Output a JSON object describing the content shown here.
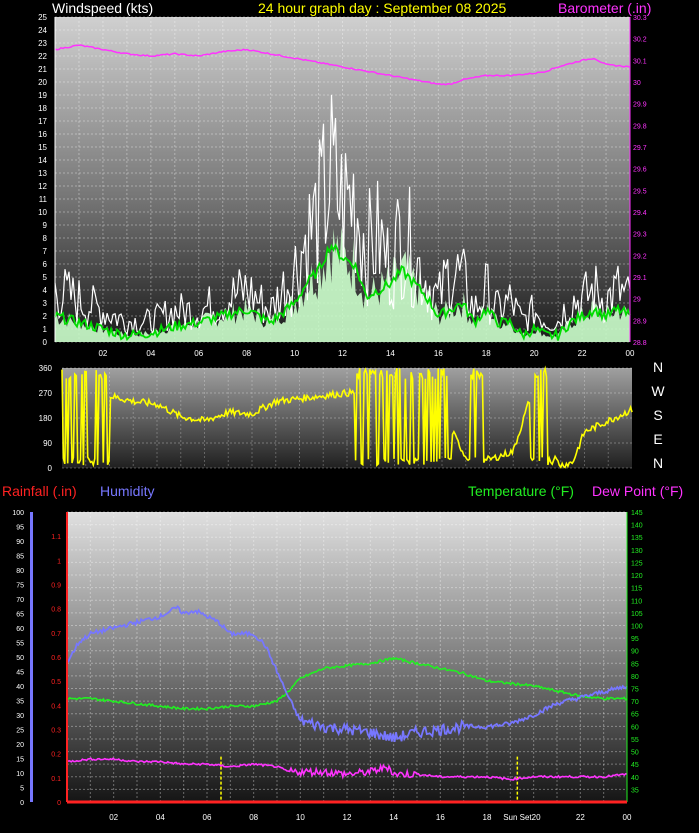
{
  "chart_data": [
    {
      "type": "line",
      "title": "24 hour graph day : September 08 2025",
      "ylabel_left": "Windspeed (kts)",
      "ylabel_right": "Barometer (.in)",
      "x_ticks": [
        "02",
        "04",
        "06",
        "08",
        "10",
        "12",
        "14",
        "16",
        "18",
        "20",
        "22",
        "00"
      ],
      "ylim_left": [
        0,
        25
      ],
      "ylim_right": [
        28.8,
        30.3
      ],
      "left_ticks": [
        "0",
        "1",
        "2",
        "3",
        "4",
        "5",
        "6",
        "7",
        "8",
        "9",
        "10",
        "11",
        "12",
        "13",
        "14",
        "15",
        "16",
        "17",
        "18",
        "19",
        "20",
        "21",
        "22",
        "23",
        "24",
        "25"
      ],
      "right_ticks": [
        "28.8",
        "28.9",
        "29",
        "29.1",
        "29.2",
        "29.3",
        "29.4",
        "29.5",
        "29.6",
        "29.7",
        "29.8",
        "29.9",
        "30",
        "30.1",
        "30.2",
        "30.3"
      ],
      "grid": true,
      "series": [
        {
          "key": "barometer",
          "color": "#ff33ff",
          "x": [
            0,
            1,
            2,
            3,
            4,
            5,
            6,
            7,
            8,
            9,
            10,
            11,
            12,
            13,
            14,
            15,
            16,
            16.5,
            17,
            18,
            19,
            20,
            20.5,
            21,
            22,
            22.5,
            23,
            24
          ],
          "values": [
            30.15,
            30.17,
            30.15,
            30.13,
            30.12,
            30.13,
            30.12,
            30.14,
            30.15,
            30.13,
            30.11,
            30.09,
            30.07,
            30.05,
            30.03,
            30.01,
            29.99,
            29.99,
            30.01,
            30.03,
            30.03,
            30.04,
            30.05,
            30.07,
            30.1,
            30.11,
            30.08,
            30.07
          ]
        },
        {
          "key": "gust",
          "color": "#ffffff",
          "x": [
            0,
            1,
            2,
            3,
            4,
            5,
            6,
            7,
            8,
            9,
            10,
            10.5,
            11,
            11.5,
            12,
            12.5,
            13,
            13.5,
            14,
            14.5,
            15,
            15.5,
            16,
            16.5,
            17,
            17.5,
            18,
            18.5,
            19,
            19.5,
            20,
            20.5,
            21,
            21.5,
            22,
            22.5,
            23,
            23.5,
            24
          ],
          "values": [
            5,
            4,
            3,
            2,
            2,
            3,
            3,
            4,
            5,
            3,
            7,
            10,
            12,
            16,
            13,
            14,
            9,
            10,
            7,
            11,
            8,
            6,
            4,
            7,
            6,
            3,
            5,
            3,
            4,
            2,
            3,
            2,
            2,
            4,
            4,
            5,
            4,
            5,
            4
          ]
        },
        {
          "key": "avg",
          "color": "#00dd00",
          "x": [
            0,
            1,
            2,
            3,
            4,
            5,
            6,
            7,
            8,
            9,
            10,
            10.5,
            11,
            11.5,
            12,
            12.5,
            13,
            13.5,
            14,
            14.5,
            15,
            15.5,
            16,
            16.5,
            17,
            17.5,
            18,
            18.5,
            19,
            19.5,
            20,
            20.5,
            21,
            21.5,
            22,
            22.5,
            23,
            23.5,
            24
          ],
          "values": [
            2,
            1.5,
            1,
            0.5,
            0.7,
            1.2,
            1.5,
            2,
            2.5,
            1.5,
            3,
            4.5,
            5.5,
            7.5,
            6.5,
            6,
            3.5,
            4,
            4.5,
            5.5,
            4.5,
            3.5,
            2,
            2.5,
            3,
            1.5,
            2.5,
            1.5,
            1.5,
            0.5,
            1,
            0.5,
            0.5,
            1.5,
            2,
            2.5,
            2,
            2.5,
            2
          ]
        }
      ]
    },
    {
      "type": "line",
      "ylabels_right": [
        "N",
        "W",
        "S",
        "E",
        "N"
      ],
      "ylim": [
        0,
        360
      ],
      "left_ticks": [
        "0",
        "90",
        "180",
        "270",
        "360"
      ],
      "series": [
        {
          "key": "direction",
          "color": "#ffff00",
          "x": [
            0,
            1,
            2,
            3,
            4,
            5,
            6,
            7,
            8,
            9,
            10,
            11,
            12,
            13,
            14,
            15,
            16,
            17,
            18,
            19,
            20,
            20.5,
            21,
            21.5,
            22,
            23,
            24
          ],
          "values": [
            280,
            290,
            260,
            240,
            230,
            185,
            170,
            200,
            195,
            240,
            250,
            260,
            270,
            270,
            290,
            240,
            200,
            40,
            30,
            60,
            330,
            60,
            10,
            20,
            130,
            170,
            210
          ]
        }
      ]
    },
    {
      "type": "line",
      "label_rain": "Rainfall (.in)",
      "label_humidity": "Humidity",
      "label_temp": "Temperature (°F)",
      "label_dew": "Dew Point (°F)",
      "sunset_label": "Sun Set",
      "x_ticks": [
        "02",
        "04",
        "06",
        "08",
        "10",
        "12",
        "14",
        "16",
        "18",
        "20",
        "22",
        "00"
      ],
      "ylim_humidity": [
        0,
        100
      ],
      "ylim_rain": [
        0,
        1.2
      ],
      "ylim_temp": [
        30,
        145
      ],
      "humidity_ticks": [
        "0",
        "5",
        "10",
        "15",
        "20",
        "25",
        "30",
        "35",
        "40",
        "45",
        "50",
        "55",
        "60",
        "65",
        "70",
        "75",
        "80",
        "85",
        "90",
        "95",
        "100"
      ],
      "rain_ticks": [
        "0",
        "0.1",
        "0.2",
        "0.3",
        "0.4",
        "0.5",
        "0.6",
        "0.7",
        "0.8",
        "0.9",
        "1",
        "1.1"
      ],
      "temp_ticks": [
        "35",
        "40",
        "45",
        "50",
        "55",
        "60",
        "65",
        "70",
        "75",
        "80",
        "85",
        "90",
        "95",
        "100",
        "105",
        "110",
        "115",
        "120",
        "125",
        "130",
        "135",
        "140",
        "145"
      ],
      "sunrise_x": 6.6,
      "sunset_x": 19.3,
      "series": [
        {
          "key": "humidity",
          "color": "#7777ff",
          "x": [
            0,
            0.5,
            1,
            2,
            3,
            4,
            4.7,
            5,
            5.5,
            6,
            6.5,
            7,
            8,
            8.5,
            9,
            9.5,
            10,
            11,
            12,
            13,
            14,
            15,
            16,
            17,
            18,
            19,
            20,
            21,
            22,
            23,
            24
          ],
          "values": [
            48,
            55,
            58,
            60,
            62,
            64,
            67,
            65,
            66,
            64,
            62,
            58,
            58,
            54,
            45,
            36,
            28,
            26,
            25,
            24,
            22,
            24,
            25,
            26,
            26,
            27,
            30,
            34,
            36,
            38,
            40
          ]
        },
        {
          "key": "temperature",
          "color": "#22ee22",
          "x": [
            0,
            1,
            2,
            3,
            4,
            5,
            6,
            7,
            8,
            8.5,
            9,
            9.5,
            10,
            11,
            12,
            13,
            14,
            15,
            16,
            17,
            18,
            19,
            20,
            21,
            22,
            23,
            24
          ],
          "values": [
            71,
            71,
            70,
            69,
            68,
            67,
            67,
            68,
            68,
            69,
            70,
            74,
            79,
            83,
            84,
            85,
            87,
            85,
            83,
            81,
            78,
            77,
            76,
            74,
            72,
            71,
            71
          ]
        },
        {
          "key": "dewpoint",
          "color": "#ff33ff",
          "x": [
            0,
            1,
            2,
            3,
            4,
            5,
            6,
            7,
            8,
            9,
            9.5,
            10,
            11,
            12,
            13,
            13.8,
            14,
            15,
            16,
            17,
            18,
            19,
            20,
            21,
            22,
            23,
            24
          ],
          "values": [
            46,
            47,
            47,
            46,
            46,
            45,
            45,
            44,
            45,
            44,
            42,
            42,
            42,
            41,
            42,
            44,
            41,
            41,
            40,
            40,
            40,
            39,
            40,
            40,
            40,
            40,
            41
          ]
        }
      ]
    }
  ]
}
